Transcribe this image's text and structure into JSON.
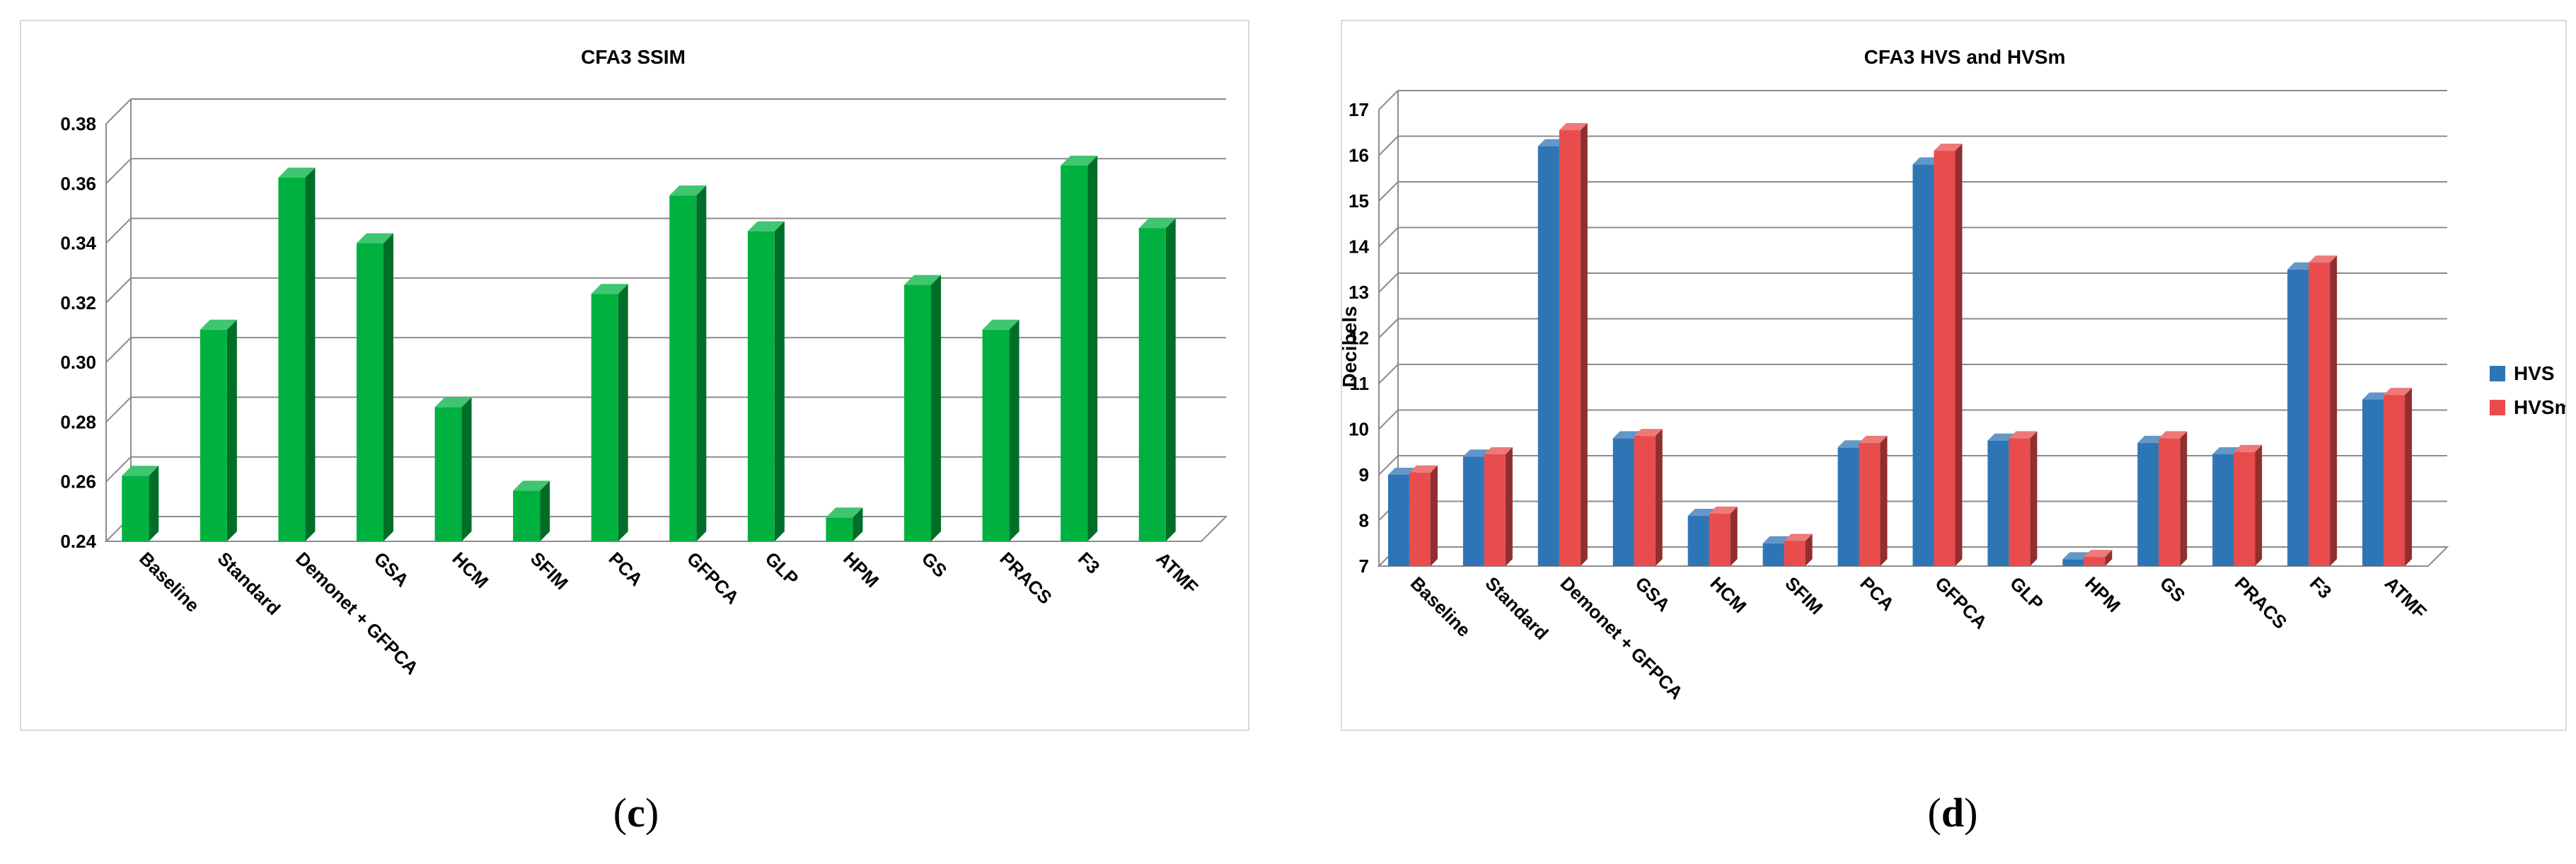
{
  "captions": {
    "left": "c",
    "right": "d"
  },
  "chart_data": [
    {
      "type": "bar",
      "title": "CFA3 SSIM",
      "xlabel": "",
      "ylabel": "",
      "categories": [
        "Baseline",
        "Standard",
        "Demonet + GFPCA",
        "GSA",
        "HCM",
        "SFIM",
        "PCA",
        "GFPCA",
        "GLP",
        "HPM",
        "GS",
        "PRACS",
        "F3",
        "ATMF"
      ],
      "series": [
        {
          "values": [
            0.262,
            0.311,
            0.362,
            0.34,
            0.285,
            0.257,
            0.323,
            0.356,
            0.344,
            0.248,
            0.326,
            0.311,
            0.366,
            0.345
          ]
        }
      ],
      "ylim": [
        0.24,
        0.38
      ],
      "yticks": [
        "0.24",
        "0.26",
        "0.28",
        "0.30",
        "0.32",
        "0.34",
        "0.36",
        "0.38"
      ],
      "grid": true,
      "legend": "none",
      "colors": {
        "bar": "#00b140",
        "bar_side": "#007a2c",
        "bar_top": "#2fd060"
      }
    },
    {
      "type": "bar",
      "title": "CFA3 HVS and HVSm",
      "xlabel": "",
      "ylabel": "Decibels",
      "categories": [
        "Baseline",
        "Standard",
        "Demonet + GFPCA",
        "GSA",
        "HCM",
        "SFIM",
        "PCA",
        "GFPCA",
        "GLP",
        "HPM",
        "GS",
        "PRACS",
        "F3",
        "ATMF"
      ],
      "series": [
        {
          "name": "HVS",
          "values": [
            9.0,
            9.4,
            16.2,
            9.8,
            8.1,
            7.5,
            9.6,
            15.8,
            9.75,
            7.15,
            9.7,
            9.45,
            13.5,
            10.65
          ]
        },
        {
          "name": "HVSm",
          "values": [
            9.05,
            9.45,
            16.55,
            9.85,
            8.15,
            7.55,
            9.7,
            16.1,
            9.8,
            7.2,
            9.8,
            9.5,
            13.65,
            10.75
          ]
        }
      ],
      "ylim": [
        7,
        17
      ],
      "yticks": [
        "7",
        "8",
        "9",
        "10",
        "11",
        "12",
        "13",
        "14",
        "15",
        "16",
        "17"
      ],
      "grid": true,
      "legend": "right",
      "colors": {
        "HVS": "#2e75b6",
        "HVSm": "#e84c4c"
      }
    }
  ]
}
